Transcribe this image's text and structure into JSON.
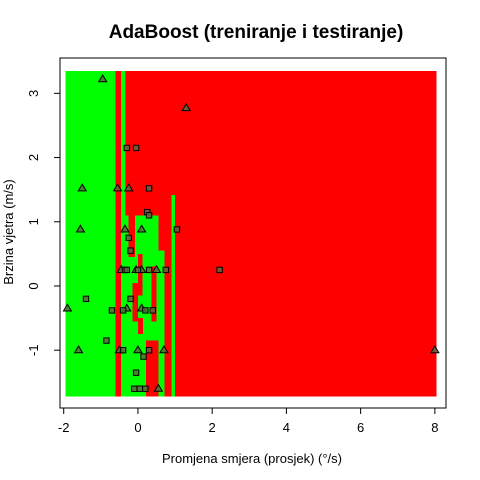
{
  "chart_data": {
    "type": "scatter",
    "title": "AdaBoost (treniranje i testiranje)",
    "xlabel": "Promjena smjera (prosjek) (°/s)",
    "ylabel": "Brzina vjetra (m/s)",
    "xlim": [
      -2.1,
      8.3
    ],
    "ylim": [
      -1.9,
      3.55
    ],
    "xticks": [
      -2,
      0,
      2,
      4,
      6,
      8
    ],
    "yticks": [
      -1,
      0,
      1,
      2,
      3
    ],
    "region_extent": {
      "x": [
        -1.95,
        8.05
      ],
      "y": [
        -1.72,
        3.35
      ]
    },
    "colors": {
      "class_a": "#00ff00",
      "class_b": "#ff0000",
      "points": "#5a6a40"
    },
    "background_class": "class_b",
    "regions": [
      {
        "class": "class_a",
        "x": [
          -1.95,
          -0.6
        ],
        "y": [
          -1.72,
          3.35
        ]
      },
      {
        "class": "class_a",
        "x": [
          -0.45,
          -0.33
        ],
        "y": [
          -1.72,
          3.35
        ]
      },
      {
        "class": "class_a",
        "x": [
          -0.33,
          0.55
        ],
        "y": [
          -1.72,
          1.1
        ]
      },
      {
        "class": "class_a",
        "x": [
          0.55,
          0.8
        ],
        "y": [
          -1.72,
          0.55
        ]
      },
      {
        "class": "class_a",
        "x": [
          0.9,
          1.0
        ],
        "y": [
          -1.72,
          1.42
        ]
      },
      {
        "class": "class_b",
        "x": [
          -0.25,
          -0.08
        ],
        "y": [
          0.45,
          3.35
        ]
      },
      {
        "class": "class_b",
        "x": [
          -0.15,
          0.0
        ],
        "y": [
          -0.55,
          0.05
        ]
      },
      {
        "class": "class_b",
        "x": [
          0.0,
          0.12
        ],
        "y": [
          -0.15,
          0.5
        ]
      },
      {
        "class": "class_b",
        "x": [
          0.0,
          0.14
        ],
        "y": [
          -0.75,
          -0.5
        ]
      },
      {
        "class": "class_b",
        "x": [
          0.22,
          0.55
        ],
        "y": [
          -1.72,
          -0.85
        ]
      },
      {
        "class": "class_b",
        "x": [
          0.36,
          0.5
        ],
        "y": [
          -0.55,
          0.3
        ]
      },
      {
        "class": "class_b",
        "x": [
          0.72,
          0.9
        ],
        "y": [
          -1.72,
          1.42
        ]
      }
    ],
    "series": [
      {
        "name": "triangle",
        "marker": "triangle",
        "points": [
          [
            -0.95,
            3.22
          ],
          [
            1.3,
            2.77
          ],
          [
            -1.5,
            1.52
          ],
          [
            -0.55,
            1.52
          ],
          [
            -0.25,
            1.52
          ],
          [
            -1.55,
            0.88
          ],
          [
            -0.35,
            0.88
          ],
          [
            0.1,
            0.88
          ],
          [
            -0.45,
            0.25
          ],
          [
            -0.05,
            0.25
          ],
          [
            0.1,
            0.25
          ],
          [
            0.5,
            0.25
          ],
          [
            -1.9,
            -0.35
          ],
          [
            -0.3,
            -0.35
          ],
          [
            0.1,
            -0.35
          ],
          [
            -1.6,
            -1.0
          ],
          [
            -0.5,
            -1.0
          ],
          [
            0.0,
            -1.0
          ],
          [
            0.7,
            -1.0
          ],
          [
            0.55,
            -1.6
          ],
          [
            8.0,
            -1.0
          ]
        ]
      },
      {
        "name": "square",
        "marker": "square",
        "points": [
          [
            -0.3,
            2.15
          ],
          [
            -0.05,
            2.15
          ],
          [
            0.3,
            1.52
          ],
          [
            0.25,
            1.15
          ],
          [
            0.3,
            1.1
          ],
          [
            1.05,
            0.88
          ],
          [
            -0.25,
            0.75
          ],
          [
            -0.2,
            0.55
          ],
          [
            -0.35,
            0.25
          ],
          [
            -0.3,
            0.25
          ],
          [
            0.0,
            0.25
          ],
          [
            0.3,
            0.25
          ],
          [
            0.75,
            0.25
          ],
          [
            2.2,
            0.25
          ],
          [
            -1.4,
            -0.2
          ],
          [
            -0.2,
            -0.2
          ],
          [
            -0.7,
            -0.38
          ],
          [
            -0.4,
            -0.38
          ],
          [
            0.2,
            -0.38
          ],
          [
            0.4,
            -0.38
          ],
          [
            -0.85,
            -0.85
          ],
          [
            -0.4,
            -1.0
          ],
          [
            0.3,
            -1.0
          ],
          [
            0.15,
            -1.1
          ],
          [
            -0.05,
            -1.35
          ],
          [
            -0.1,
            -1.6
          ],
          [
            0.05,
            -1.6
          ],
          [
            0.2,
            -1.6
          ]
        ]
      }
    ]
  }
}
